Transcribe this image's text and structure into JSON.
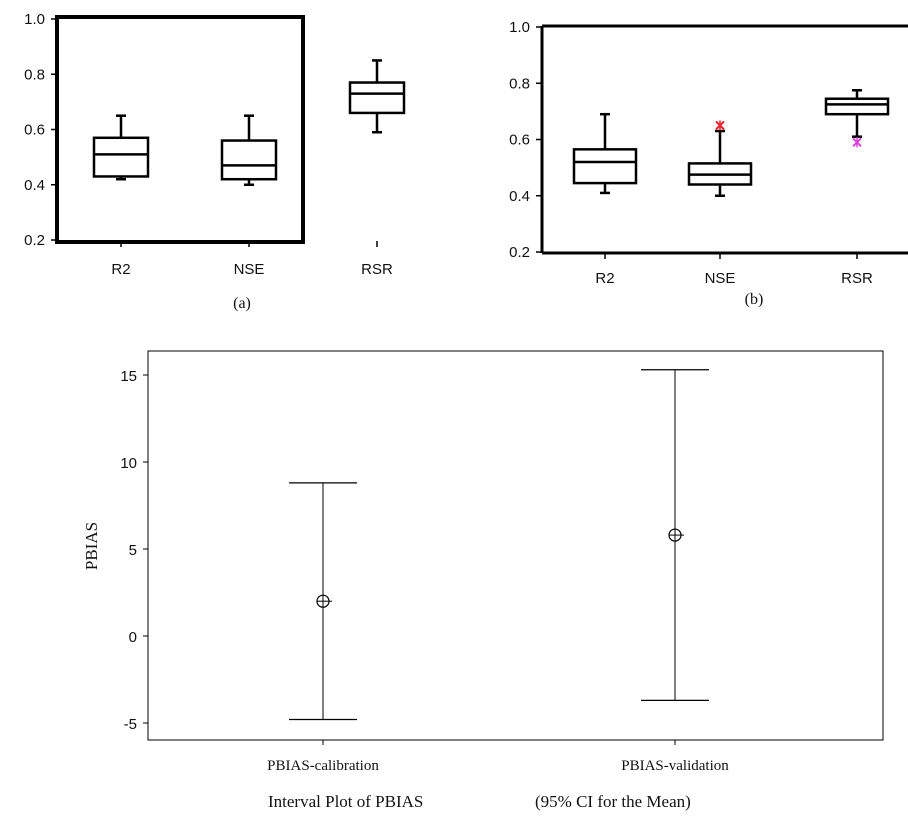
{
  "chart_data": [
    {
      "type": "box",
      "label": "(a)",
      "categories": [
        "R2",
        "NSE",
        "RSR"
      ],
      "ylim": [
        0.2,
        1.0
      ],
      "yticks": [
        "0.2",
        "0.4",
        "0.6",
        "0.8",
        "1.0"
      ],
      "boxes": [
        {
          "name": "R2",
          "min": 0.42,
          "q1": 0.43,
          "median": 0.51,
          "q3": 0.57,
          "max": 0.65
        },
        {
          "name": "NSE",
          "min": 0.4,
          "q1": 0.42,
          "median": 0.47,
          "q3": 0.56,
          "max": 0.65
        },
        {
          "name": "RSR",
          "min": 0.59,
          "q1": 0.66,
          "median": 0.73,
          "q3": 0.77,
          "max": 0.85
        }
      ],
      "outliers": []
    },
    {
      "type": "box",
      "label": "(b)",
      "categories": [
        "R2",
        "NSE",
        "RSR"
      ],
      "ylim": [
        0.2,
        1.0
      ],
      "yticks": [
        "0.2",
        "0.4",
        "0.6",
        "0.8",
        "1.0"
      ],
      "boxes": [
        {
          "name": "R2",
          "min": 0.41,
          "q1": 0.445,
          "median": 0.52,
          "q3": 0.565,
          "max": 0.69
        },
        {
          "name": "NSE",
          "min": 0.4,
          "q1": 0.44,
          "median": 0.475,
          "q3": 0.515,
          "max": 0.63
        },
        {
          "name": "RSR",
          "min": 0.61,
          "q1": 0.69,
          "median": 0.725,
          "q3": 0.745,
          "max": 0.775
        }
      ],
      "outliers": [
        {
          "category": "NSE",
          "value": 0.65,
          "color": "#e8202a"
        },
        {
          "category": "RSR",
          "value": 0.59,
          "color": "#e040e0"
        }
      ]
    },
    {
      "type": "interval",
      "categories": [
        "PBIAS-calibration",
        "PBIAS-validation"
      ],
      "ylabel": "PBIAS",
      "ylim": [
        -6,
        16.5
      ],
      "yticks": [
        "-5",
        "0",
        "5",
        "10",
        "15"
      ],
      "intervals": [
        {
          "name": "PBIAS-calibration",
          "mean": 2.0,
          "lower": -4.8,
          "upper": 8.8
        },
        {
          "name": "PBIAS-validation",
          "mean": 5.8,
          "lower": -3.7,
          "upper": 15.3
        }
      ],
      "caption_left": "Interval Plot of PBIAS",
      "caption_right": "(95% CI for the Mean)"
    }
  ]
}
